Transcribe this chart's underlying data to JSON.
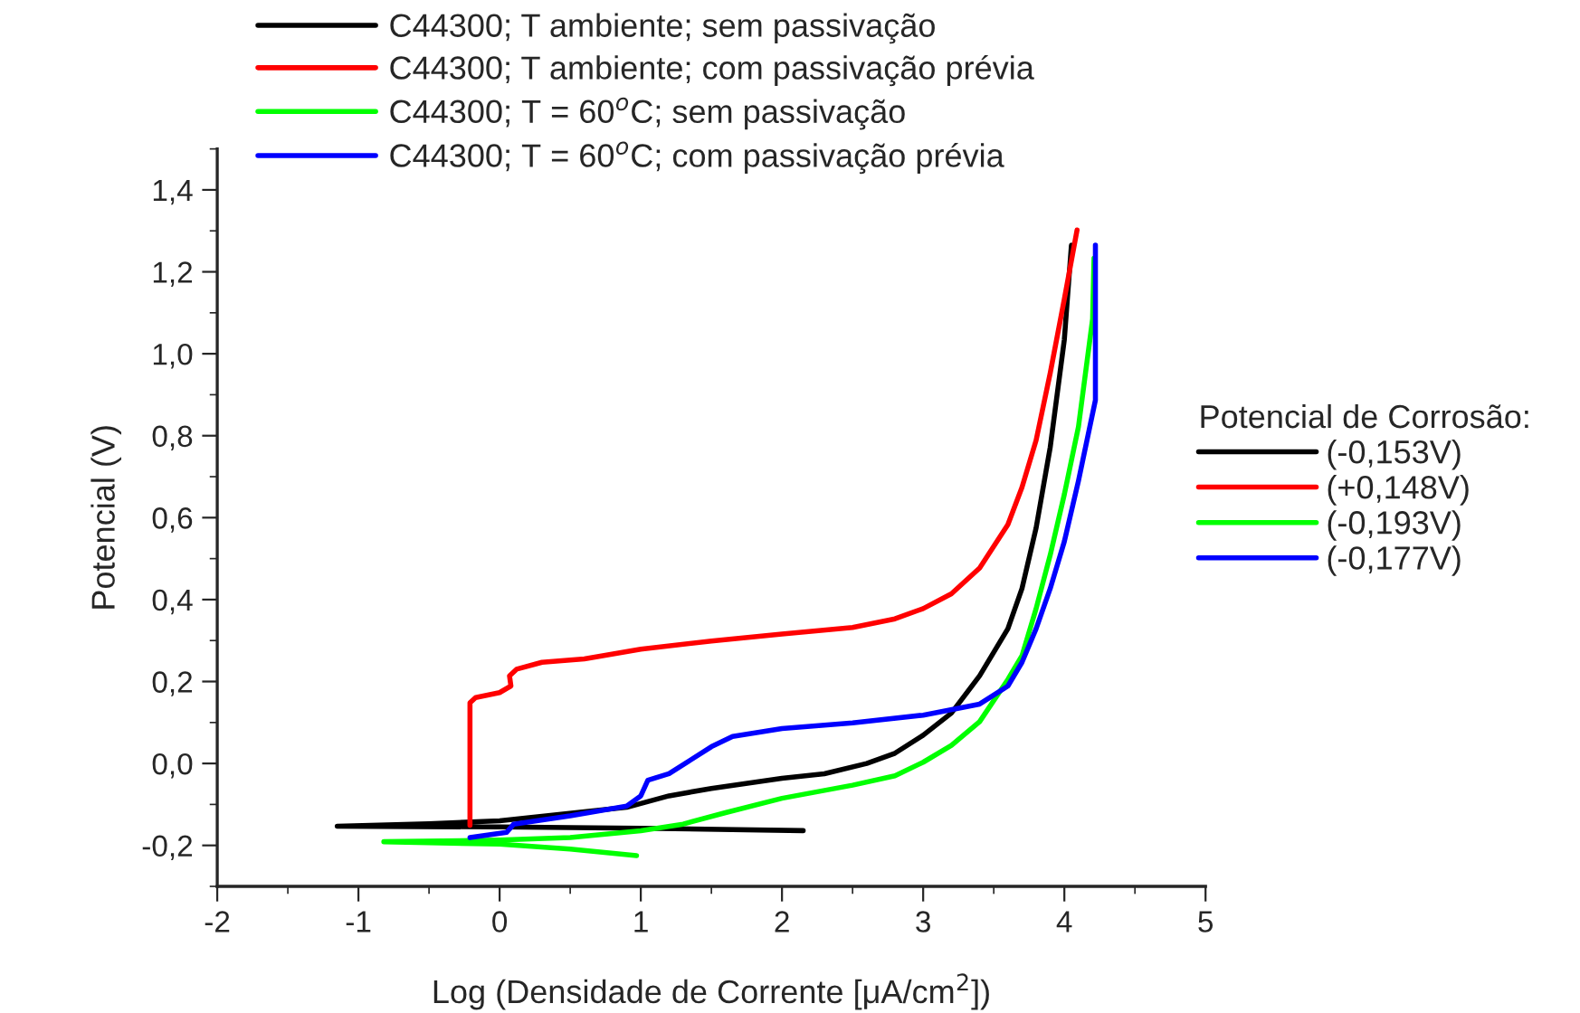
{
  "chart_data": {
    "type": "line",
    "xlabel": "Log (Densidade de Corrente [μA/cm$^{2}$])",
    "ylabel": "Potencial (V)",
    "legend_title": "Potencial de Corrosão:",
    "annotations": [
      "(-0,153V)",
      "(+0,148V)",
      "(-0,193V)",
      "(-0,177V)"
    ],
    "xlim": [
      -2,
      5
    ],
    "xticks": [
      -2,
      -1,
      0,
      1,
      2,
      3,
      4,
      5
    ],
    "ylim": [
      -0.3,
      1.5
    ],
    "yticks": [
      {
        "value": -0.2,
        "label": "-0,2"
      },
      {
        "value": 0.0,
        "label": "0,0"
      },
      {
        "value": 0.2,
        "label": "0,2"
      },
      {
        "value": 0.4,
        "label": "0,4"
      },
      {
        "value": 0.6,
        "label": "0,6"
      },
      {
        "value": 0.8,
        "label": "0,8"
      },
      {
        "value": 1.0,
        "label": "1,0"
      },
      {
        "value": 1.2,
        "label": "1,2"
      },
      {
        "value": 1.4,
        "label": "1,4"
      }
    ],
    "grid": false,
    "legend": "top left",
    "marker": "none",
    "line_style": "solid",
    "series": [
      {
        "name": "C44300; T ambiente; sem passivação",
        "color": "#000000",
        "x": [
          2.15,
          1.0,
          0.0,
          -1.15,
          -0.5,
          0.0,
          0.9,
          1.2,
          1.5,
          2.0,
          2.3,
          2.6,
          2.8,
          3.0,
          3.2,
          3.4,
          3.6,
          3.7,
          3.8,
          3.9,
          4.0,
          4.05
        ],
        "values": [
          -0.164,
          -0.158,
          -0.155,
          -0.153,
          -0.147,
          -0.14,
          -0.107,
          -0.079,
          -0.061,
          -0.036,
          -0.025,
          0.0,
          0.025,
          0.069,
          0.123,
          0.214,
          0.329,
          0.427,
          0.575,
          0.772,
          1.035,
          1.265
        ]
      },
      {
        "name": "C44300; T ambiente; com passivação prévia",
        "color": "#ff0000",
        "x": [
          -0.21,
          -0.21,
          -0.17,
          0.0,
          0.08,
          0.07,
          0.12,
          0.3,
          0.6,
          1.0,
          1.5,
          2.0,
          2.5,
          2.8,
          3.0,
          3.2,
          3.4,
          3.6,
          3.7,
          3.8,
          3.9,
          4.0,
          4.09
        ],
        "values": [
          -0.151,
          0.148,
          0.161,
          0.173,
          0.189,
          0.214,
          0.23,
          0.247,
          0.255,
          0.279,
          0.299,
          0.316,
          0.332,
          0.353,
          0.378,
          0.414,
          0.477,
          0.583,
          0.674,
          0.789,
          0.953,
          1.134,
          1.302
        ]
      },
      {
        "name": "C44300; T = 60$^{o}$C; sem passivação",
        "color": "#00ff00",
        "x": [
          0.97,
          0.5,
          0.0,
          -0.82,
          0.0,
          0.5,
          1.0,
          1.3,
          1.6,
          2.0,
          2.5,
          2.8,
          3.0,
          3.2,
          3.4,
          3.6,
          3.7,
          3.8,
          3.9,
          4.0,
          4.1,
          4.2,
          4.21
        ],
        "values": [
          -0.225,
          -0.209,
          -0.197,
          -0.191,
          -0.187,
          -0.181,
          -0.164,
          -0.148,
          -0.12,
          -0.085,
          -0.053,
          -0.03,
          0.003,
          0.044,
          0.102,
          0.205,
          0.263,
          0.378,
          0.509,
          0.657,
          0.822,
          1.085,
          1.233
        ]
      },
      {
        "name": "C44300; T = 60$^{o}$C; com passivação prévia",
        "color": "#0000ff",
        "x": [
          -0.21,
          0.05,
          0.1,
          0.5,
          0.9,
          1.0,
          1.05,
          1.2,
          1.35,
          1.5,
          1.65,
          2.0,
          2.5,
          3.0,
          3.4,
          3.6,
          3.7,
          3.8,
          3.9,
          4.0,
          4.1,
          4.22,
          4.22
        ],
        "values": [
          -0.181,
          -0.168,
          -0.148,
          -0.128,
          -0.104,
          -0.079,
          -0.041,
          -0.025,
          0.008,
          0.041,
          0.066,
          0.085,
          0.099,
          0.118,
          0.145,
          0.189,
          0.247,
          0.329,
          0.427,
          0.542,
          0.69,
          0.887,
          1.265
        ]
      }
    ]
  }
}
